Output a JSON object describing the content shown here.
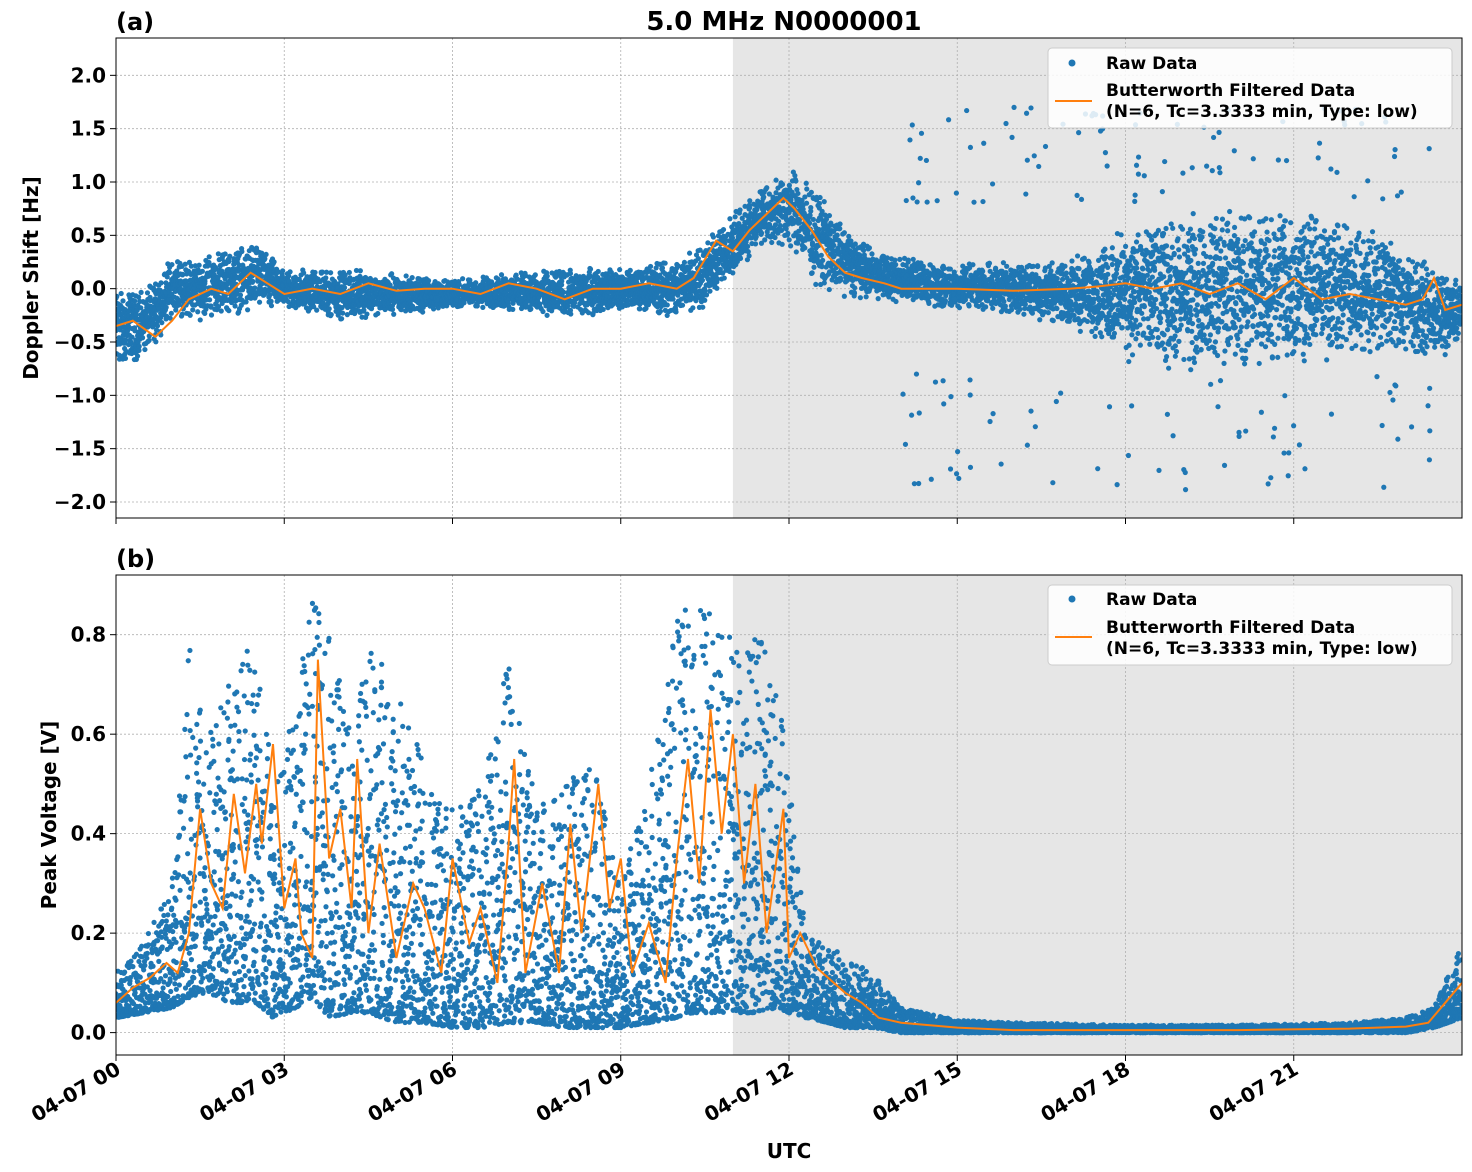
{
  "figure": {
    "title": "5.0 MHz N0000001",
    "xlabel": "UTC",
    "x_tick_labels": [
      "04-07 00",
      "04-07 03",
      "04-07 06",
      "04-07 09",
      "04-07 12",
      "04-07 15",
      "04-07 18",
      "04-07 21"
    ],
    "x_range_hours": [
      0,
      24
    ],
    "shaded_interval_hours": [
      11.0,
      24.0
    ],
    "colors": {
      "raw": "#1f77b4",
      "filtered": "#ff7f0e",
      "shade": "#e6e6e6",
      "grid": "#b0b0b0"
    },
    "legend": {
      "raw_label": "Raw Data",
      "filtered_label_line1": "Butterworth Filtered Data",
      "filtered_label_line2": "(N=6, Tc=3.3333 min, Type: low)",
      "placement": "top-right"
    }
  },
  "chart_data": [
    {
      "type": "scatter",
      "panel_label": "(a)",
      "ylabel": "Doppler Shift [Hz]",
      "ylim": [
        -2.15,
        2.35
      ],
      "y_ticks": [
        -2.0,
        -1.5,
        -1.0,
        -0.5,
        0.0,
        0.5,
        1.0,
        1.5,
        2.0
      ],
      "y_tick_labels": [
        "−2.0",
        "−1.5",
        "−1.0",
        "−0.5",
        "0.0",
        "0.5",
        "1.0",
        "1.5",
        "2.0"
      ],
      "grid": true,
      "series": [
        {
          "name": "Raw Data",
          "kind": "band",
          "x_hours": [
            0,
            0.5,
            1,
            1.5,
            2,
            2.5,
            3,
            4,
            5,
            6,
            7,
            8,
            9,
            10,
            10.5,
            11,
            11.5,
            12,
            12.5,
            13,
            13.5,
            14,
            15,
            16,
            17,
            17.5,
            18,
            19,
            20,
            21,
            22,
            22.5,
            23,
            23.5,
            24
          ],
          "upper": [
            0.05,
            0.0,
            0.3,
            0.3,
            0.4,
            0.45,
            0.2,
            0.2,
            0.15,
            0.1,
            0.15,
            0.2,
            0.2,
            0.3,
            0.5,
            0.7,
            0.95,
            1.15,
            0.95,
            0.6,
            0.4,
            0.3,
            0.25,
            0.25,
            0.3,
            0.4,
            0.6,
            0.7,
            0.8,
            0.8,
            0.7,
            0.6,
            0.4,
            0.2,
            0.1
          ],
          "lower": [
            -0.8,
            -0.65,
            -0.3,
            -0.3,
            -0.25,
            -0.25,
            -0.2,
            -0.3,
            -0.25,
            -0.2,
            -0.2,
            -0.3,
            -0.2,
            -0.3,
            -0.2,
            0.1,
            0.4,
            0.35,
            0.0,
            -0.1,
            -0.1,
            -0.15,
            -0.2,
            -0.25,
            -0.35,
            -0.5,
            -0.7,
            -0.8,
            -0.8,
            -0.8,
            -0.7,
            -0.6,
            -0.6,
            -0.7,
            -0.55
          ]
        },
        {
          "name": "Butterworth Filtered Data",
          "kind": "line",
          "x_hours": [
            0,
            0.3,
            0.7,
            1.0,
            1.3,
            1.7,
            2.0,
            2.4,
            2.7,
            3.0,
            3.5,
            4.0,
            4.5,
            5.0,
            5.5,
            6.0,
            6.5,
            7.0,
            7.5,
            8.0,
            8.5,
            9.0,
            9.5,
            10.0,
            10.3,
            10.7,
            11.0,
            11.3,
            11.6,
            11.9,
            12.1,
            12.4,
            12.7,
            13.0,
            13.3,
            13.7,
            14.0,
            15.0,
            16.0,
            17.0,
            17.5,
            18.0,
            18.5,
            19.0,
            19.5,
            20.0,
            20.5,
            21.0,
            21.5,
            22.0,
            22.5,
            23.0,
            23.3,
            23.5,
            23.7,
            24.0
          ],
          "y": [
            -0.35,
            -0.3,
            -0.45,
            -0.3,
            -0.1,
            0.0,
            -0.05,
            0.15,
            0.05,
            -0.05,
            0.0,
            -0.05,
            0.05,
            -0.02,
            0.0,
            0.0,
            -0.05,
            0.05,
            0.0,
            -0.1,
            0.0,
            0.0,
            0.05,
            0.0,
            0.1,
            0.45,
            0.35,
            0.55,
            0.7,
            0.85,
            0.75,
            0.55,
            0.3,
            0.15,
            0.1,
            0.05,
            0.0,
            0.0,
            -0.02,
            0.0,
            0.02,
            0.05,
            0.0,
            0.05,
            -0.05,
            0.05,
            -0.1,
            0.1,
            -0.1,
            -0.05,
            -0.1,
            -0.15,
            -0.1,
            0.1,
            -0.2,
            -0.15
          ]
        }
      ]
    },
    {
      "type": "scatter",
      "panel_label": "(b)",
      "ylabel": "Peak Voltage [V]",
      "ylim": [
        -0.045,
        0.92
      ],
      "y_ticks": [
        0.0,
        0.2,
        0.4,
        0.6,
        0.8
      ],
      "y_tick_labels": [
        "0.0",
        "0.2",
        "0.4",
        "0.6",
        "0.8"
      ],
      "grid": true,
      "series": [
        {
          "name": "Raw Data",
          "kind": "band",
          "x_hours": [
            0,
            0.5,
            1,
            1.3,
            1.6,
            2,
            2.5,
            2.8,
            3.2,
            3.5,
            3.8,
            4.2,
            4.5,
            5,
            5.5,
            6,
            6.5,
            7,
            7.5,
            8,
            8.5,
            9,
            9.5,
            10,
            10.3,
            10.6,
            11,
            11.4,
            11.8,
            12.0,
            12.3,
            12.7,
            13.0,
            13.5,
            14,
            15,
            16,
            18,
            20,
            22,
            23,
            23.5,
            24
          ],
          "upper": [
            0.12,
            0.18,
            0.3,
            0.8,
            0.6,
            0.7,
            0.8,
            0.5,
            0.65,
            0.88,
            0.8,
            0.6,
            0.8,
            0.7,
            0.55,
            0.45,
            0.5,
            0.75,
            0.45,
            0.5,
            0.55,
            0.3,
            0.5,
            0.85,
            0.85,
            0.85,
            0.8,
            0.8,
            0.75,
            0.5,
            0.2,
            0.18,
            0.15,
            0.12,
            0.05,
            0.025,
            0.02,
            0.015,
            0.015,
            0.02,
            0.03,
            0.05,
            0.18
          ],
          "lower": [
            0.03,
            0.04,
            0.05,
            0.07,
            0.08,
            0.06,
            0.06,
            0.03,
            0.05,
            0.07,
            0.03,
            0.04,
            0.04,
            0.02,
            0.02,
            0.01,
            0.01,
            0.02,
            0.02,
            0.01,
            0.01,
            0.01,
            0.02,
            0.03,
            0.04,
            0.04,
            0.04,
            0.04,
            0.05,
            0.04,
            0.03,
            0.02,
            0.01,
            0.01,
            0.0,
            0.0,
            0.0,
            0.0,
            0.0,
            0.0,
            0.0,
            0.01,
            0.03
          ]
        },
        {
          "name": "Butterworth Filtered Data",
          "kind": "line",
          "x_hours": [
            0,
            0.3,
            0.6,
            0.9,
            1.1,
            1.3,
            1.5,
            1.7,
            1.9,
            2.1,
            2.3,
            2.5,
            2.6,
            2.8,
            3.0,
            3.2,
            3.3,
            3.5,
            3.6,
            3.8,
            4.0,
            4.2,
            4.3,
            4.5,
            4.7,
            5.0,
            5.3,
            5.5,
            5.8,
            6.0,
            6.3,
            6.5,
            6.8,
            7.0,
            7.1,
            7.3,
            7.6,
            7.9,
            8.1,
            8.3,
            8.6,
            8.8,
            9.0,
            9.2,
            9.5,
            9.8,
            10.0,
            10.2,
            10.4,
            10.6,
            10.8,
            11.0,
            11.2,
            11.4,
            11.6,
            11.9,
            12.0,
            12.2,
            12.5,
            12.8,
            13.0,
            13.3,
            13.6,
            14.0,
            15.0,
            16.0,
            18.0,
            20.0,
            22.0,
            23.0,
            23.4,
            23.7,
            24.0
          ],
          "y": [
            0.06,
            0.09,
            0.11,
            0.14,
            0.12,
            0.2,
            0.45,
            0.3,
            0.25,
            0.48,
            0.32,
            0.5,
            0.38,
            0.58,
            0.25,
            0.35,
            0.2,
            0.15,
            0.75,
            0.35,
            0.45,
            0.25,
            0.55,
            0.2,
            0.38,
            0.15,
            0.3,
            0.25,
            0.12,
            0.35,
            0.18,
            0.25,
            0.1,
            0.38,
            0.55,
            0.12,
            0.3,
            0.12,
            0.42,
            0.2,
            0.5,
            0.25,
            0.35,
            0.12,
            0.22,
            0.1,
            0.35,
            0.55,
            0.3,
            0.65,
            0.4,
            0.6,
            0.3,
            0.5,
            0.2,
            0.45,
            0.15,
            0.2,
            0.13,
            0.1,
            0.08,
            0.06,
            0.03,
            0.02,
            0.01,
            0.005,
            0.005,
            0.005,
            0.008,
            0.012,
            0.02,
            0.06,
            0.1
          ]
        }
      ]
    }
  ]
}
